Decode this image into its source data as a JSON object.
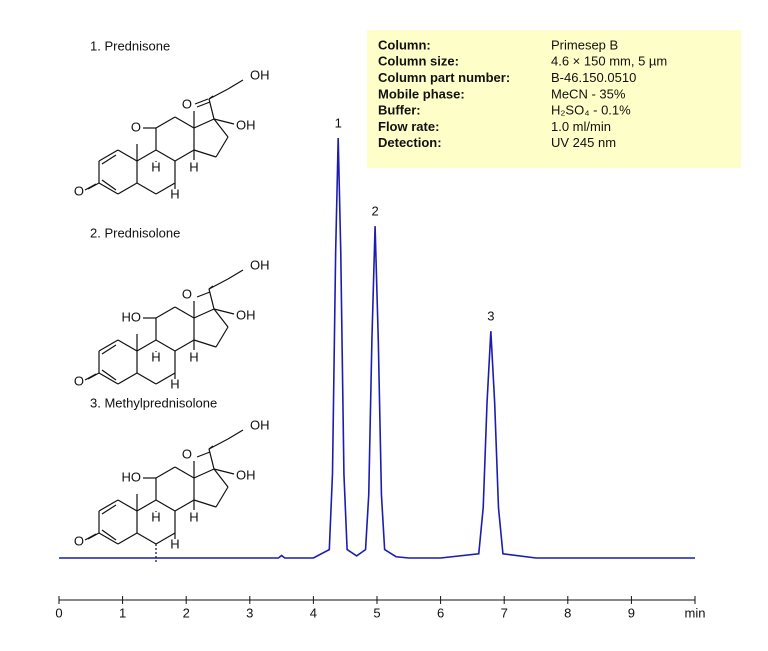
{
  "chart_data": {
    "type": "line",
    "x": [
      0,
      1,
      2,
      3,
      3.45,
      3.5,
      3.55,
      4,
      4.25,
      4.3,
      4.35,
      4.39,
      4.43,
      4.48,
      4.53,
      4.68,
      4.82,
      4.87,
      4.92,
      4.97,
      5.02,
      5.07,
      5.12,
      5.3,
      5.5,
      6,
      6.6,
      6.67,
      6.73,
      6.79,
      6.85,
      6.91,
      6.98,
      7.5,
      8,
      9,
      10
    ],
    "values": [
      0,
      0,
      0,
      0,
      0,
      0.6,
      0,
      0,
      2,
      20,
      73,
      100,
      73,
      20,
      2,
      0.5,
      2,
      15,
      52,
      79,
      52,
      15,
      2,
      0.3,
      0,
      0,
      1,
      12,
      37,
      54,
      37,
      12,
      1,
      0,
      0,
      0,
      0
    ],
    "color": "#1c1cb0",
    "xlim": [
      0,
      10
    ],
    "xticks": [
      0,
      1,
      2,
      3,
      4,
      5,
      6,
      7,
      8,
      9,
      {
        "value": 10,
        "label": "min"
      }
    ],
    "ylim": [
      -5,
      110
    ],
    "peaks": [
      {
        "label": "1",
        "x": 4.39,
        "y": 100
      },
      {
        "label": "2",
        "x": 4.97,
        "y": 79
      },
      {
        "label": "3",
        "x": 6.79,
        "y": 54
      }
    ]
  },
  "conditions": [
    [
      "Column:",
      "Primesep  B"
    ],
    [
      "Column size:",
      "4.6 × 150 mm, 5 µm"
    ],
    [
      "Column part number:",
      "B-46.150.0510"
    ],
    [
      "Mobile phase:",
      "MeCN - 35%"
    ],
    [
      "Buffer:",
      "H₂SO₄ - 0.1%"
    ],
    [
      "Flow rate:",
      "1.0 ml/min"
    ],
    [
      "Detection:",
      " UV 245 nm"
    ]
  ],
  "compounds": [
    {
      "name": "1.    Prednisone",
      "atoms": [
        "OH",
        "O",
        "OH",
        "O",
        "H",
        "H",
        "H",
        "O"
      ]
    },
    {
      "name": "2.  Prednisolone",
      "atoms": [
        "OH",
        "O",
        "OH",
        "HO",
        "H",
        "H",
        "H",
        "O"
      ]
    },
    {
      "name": "3.  Methylprednisolone",
      "atoms": [
        "OH",
        "O",
        "OH",
        "HO",
        "H",
        "H",
        "H",
        "O"
      ]
    }
  ]
}
